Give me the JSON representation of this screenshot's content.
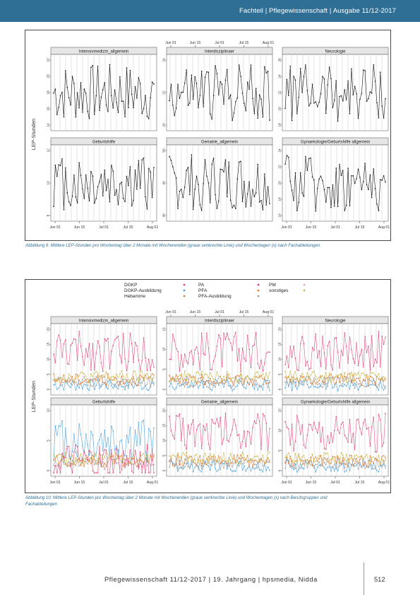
{
  "header": {
    "text": "Fachteil | Pflegewissenschaft | Ausgabe 11/12-2017"
  },
  "figure1": {
    "top_ticks": [
      "Jun 01",
      "Jun 15",
      "Jul 01",
      "Jul 15",
      "Aug 01"
    ],
    "bottom_ticks": [
      "Jun 01",
      "Jun 15",
      "Jul 01",
      "Jul 15",
      "Aug 01"
    ],
    "ylabel": "LEP-Stunden",
    "panels": [
      {
        "title": "Intensivmedizin_allgemein",
        "yticks": [
          "14",
          "16",
          "18",
          "20",
          "22"
        ]
      },
      {
        "title": "Interdisziplinaer",
        "yticks": [
          "20",
          "22",
          "24"
        ]
      },
      {
        "title": "Neurologie",
        "yticks": [
          "18",
          "20",
          "22",
          "24",
          "26"
        ]
      },
      {
        "title": "Geburtshilfe",
        "yticks": [
          "8",
          "10",
          "12"
        ]
      },
      {
        "title": "Geriatrie_allgemein",
        "yticks": [
          "30",
          "40",
          "50"
        ]
      },
      {
        "title": "Gynaekologie/Geburtshilfe allgemein",
        "yticks": [
          "16",
          "18",
          "20",
          "22",
          "24"
        ]
      }
    ],
    "caption": "Abbildung 9: Mittlere LEP-Stunden pro Wochentag über 2 Monate mit Wochenenden (graue senkrechte Linie) und Wochentagen (x) nach Fachabteilungen"
  },
  "figure2": {
    "legend": [
      {
        "label": "DGKP",
        "color": "#e0457b"
      },
      {
        "label": "DGKP-Ausbildung",
        "color": "#4aa3df"
      },
      {
        "label": "Hebamme",
        "color": "#c8843a"
      },
      {
        "label": "PA",
        "color": "#d13c8f"
      },
      {
        "label": "PFA",
        "color": "#e07a2e"
      },
      {
        "label": "PFA-Ausbildung",
        "color": "#a0a0a0"
      },
      {
        "label": "PM",
        "color": "#e8a2c2"
      },
      {
        "label": "sonstiges",
        "color": "#c9b94b"
      }
    ],
    "top_ticks": [
      "Jun 01",
      "Jun 15",
      "Jul 01",
      "Jul 15",
      "Aug 01"
    ],
    "bottom_ticks": [
      "Jun 01",
      "Jun 15",
      "Jul 01",
      "Jul 15",
      "Aug 01"
    ],
    "ylabel": "LEP-Stunden",
    "panels": [
      {
        "title": "Intensivmedizin_allgemein",
        "yticks": [
          "0",
          "5",
          "10",
          "15",
          "20"
        ]
      },
      {
        "title": "Interdisziplinaer",
        "yticks": [
          "0",
          "5",
          "10",
          "15"
        ]
      },
      {
        "title": "Neurologie",
        "yticks": [
          "0",
          "5",
          "10",
          "15",
          "20"
        ]
      },
      {
        "title": "Geburtshilfe",
        "yticks": [
          "0",
          "5",
          "10"
        ]
      },
      {
        "title": "Geriatrie_allgemein",
        "yticks": [
          "0",
          "5",
          "10",
          "15",
          "20"
        ]
      },
      {
        "title": "Gynaekologie/Geburtshilfe allgemein",
        "yticks": [
          "0",
          "5",
          "10",
          "15"
        ]
      }
    ],
    "caption": "Abbildung 10: Mittlere LEP-Stunden pro Wochentag über 2 Monate mit Wochenenden (graue senkrechte Linie) und Wochentagen (x) nach Berufsgruppen und Fachabteilungen"
  },
  "footer": {
    "text": "Pflegewissenschaft 11/12-2017 | 19. Jahrgang | hpsmedia, Nidda",
    "page_number": "512"
  },
  "colors": {
    "header_bg": "#2f6f95",
    "caption": "#2f6f95",
    "strip_bg": "#e6e6e6",
    "weekend_line": "#cccccc"
  }
}
